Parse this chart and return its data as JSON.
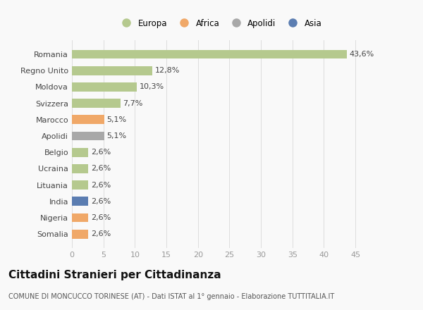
{
  "countries": [
    "Somalia",
    "Nigeria",
    "India",
    "Lituania",
    "Ucraina",
    "Belgio",
    "Apolidi",
    "Marocco",
    "Svizzera",
    "Moldova",
    "Regno Unito",
    "Romania"
  ],
  "values": [
    2.6,
    2.6,
    2.6,
    2.6,
    2.6,
    2.6,
    5.1,
    5.1,
    7.7,
    10.3,
    12.8,
    43.6
  ],
  "labels": [
    "2,6%",
    "2,6%",
    "2,6%",
    "2,6%",
    "2,6%",
    "2,6%",
    "5,1%",
    "5,1%",
    "7,7%",
    "10,3%",
    "12,8%",
    "43,6%"
  ],
  "categories": [
    "Africa",
    "Africa",
    "Asia",
    "Europa",
    "Europa",
    "Europa",
    "Apolidi",
    "Africa",
    "Europa",
    "Europa",
    "Europa",
    "Europa"
  ],
  "colors": {
    "Europa": "#b5c98e",
    "Africa": "#f0a868",
    "Apolidi": "#a8a8a8",
    "Asia": "#5b7db1"
  },
  "legend_order": [
    "Europa",
    "Africa",
    "Apolidi",
    "Asia"
  ],
  "legend_colors": {
    "Europa": "#b5c98e",
    "Africa": "#f0a868",
    "Apolidi": "#a8a8a8",
    "Asia": "#5b7db1"
  },
  "xlim": [
    0,
    47
  ],
  "xticks": [
    0,
    5,
    10,
    15,
    20,
    25,
    30,
    35,
    40,
    45
  ],
  "title": "Cittadini Stranieri per Cittadinanza",
  "subtitle": "COMUNE DI MONCUCCO TORINESE (AT) - Dati ISTAT al 1° gennaio - Elaborazione TUTTITALIA.IT",
  "bg_color": "#f9f9f9",
  "bar_height": 0.55,
  "label_fontsize": 8,
  "ylabel_fontsize": 8,
  "xlabel_fontsize": 8,
  "title_fontsize": 11,
  "subtitle_fontsize": 7
}
